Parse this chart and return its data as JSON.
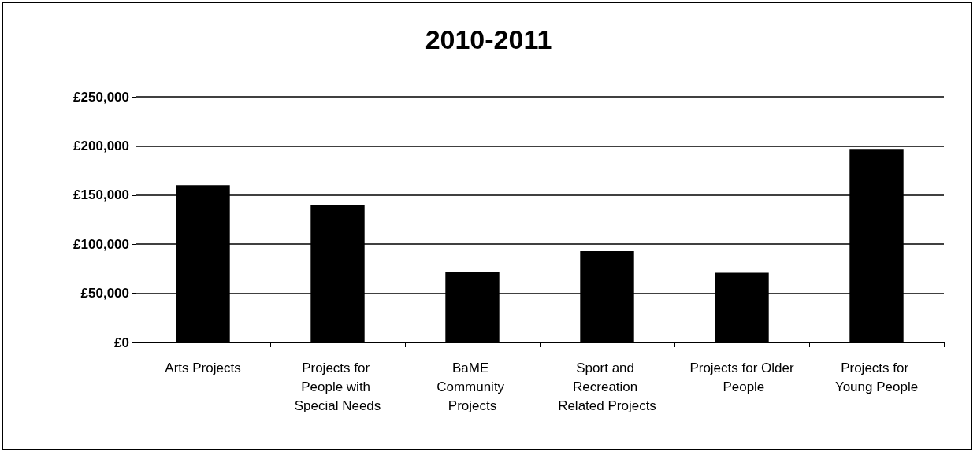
{
  "chart_data": {
    "type": "bar",
    "title": "2010-2011",
    "categories": [
      "Arts Projects",
      "Projects for People with Special Needs",
      "BaME Community Projects",
      "Sport and Recreation Related Projects",
      "Projects for Older People",
      "Projects for Young People"
    ],
    "values": [
      160000,
      140000,
      72000,
      93000,
      71000,
      197000
    ],
    "color": "#000000",
    "ylim": [
      0,
      250000
    ],
    "yticks": [
      {
        "value": 0,
        "label": "£0"
      },
      {
        "value": 50000,
        "label": "£50,000"
      },
      {
        "value": 100000,
        "label": "£100,000"
      },
      {
        "value": 150000,
        "label": "£150,000"
      },
      {
        "value": 200000,
        "label": "£200,000"
      },
      {
        "value": 250000,
        "label": "£250,000"
      }
    ],
    "grid": "y"
  }
}
